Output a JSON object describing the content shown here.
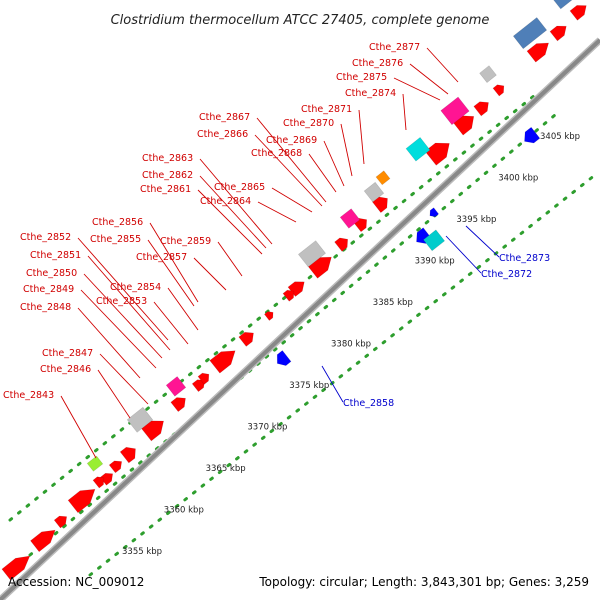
{
  "title": "Clostridium thermocellum ATCC 27405, complete genome",
  "footer": {
    "accession": "Accession: NC_009012",
    "summary": "Topology: circular; Length: 3,843,301 bp; Genes: 3,259"
  },
  "colors": {
    "forward_gene": "#ff0000",
    "reverse_gene": "#0000ff",
    "backbone": "#999999",
    "tick_dots": "#2e9e2e",
    "label_forward": "#d00000",
    "label_reverse": "#0000cc"
  },
  "ticks": [
    "3355 kbp",
    "3360 kbp",
    "3365 kbp",
    "3370 kbp",
    "3375 kbp",
    "3380 kbp",
    "3385 kbp",
    "3390 kbp",
    "3395 kbp",
    "3400 kbp",
    "3405 kbp"
  ],
  "gene_labels_forward": [
    "Cthe_2843",
    "Cthe_2846",
    "Cthe_2847",
    "Cthe_2848",
    "Cthe_2849",
    "Cthe_2850",
    "Cthe_2851",
    "Cthe_2852",
    "Cthe_2853",
    "Cthe_2854",
    "Cthe_2855",
    "Cthe_2856",
    "Cthe_2857",
    "Cthe_2859",
    "Cthe_2861",
    "Cthe_2862",
    "Cthe_2863",
    "Cthe_2864",
    "Cthe_2865",
    "Cthe_2866",
    "Cthe_2867",
    "Cthe_2868",
    "Cthe_2869",
    "Cthe_2870",
    "Cthe_2871",
    "Cthe_2874",
    "Cthe_2875",
    "Cthe_2876",
    "Cthe_2877"
  ],
  "gene_labels_reverse": [
    "Cthe_2858",
    "Cthe_2872",
    "Cthe_2873"
  ]
}
